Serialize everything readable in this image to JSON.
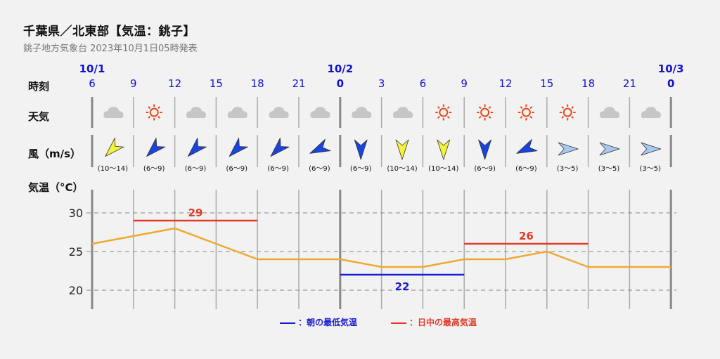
{
  "header": {
    "title": "千葉県／北東部【気温：銚子】",
    "subtitle": "銚子地方気象台 2023年10月1日05時発表"
  },
  "rows": {
    "time": "時刻",
    "weather": "天気",
    "wind": "風（m/s）",
    "temp": "気温（°C）"
  },
  "legend": {
    "min": "：朝の最低気温",
    "max": "：日中の最高気温"
  },
  "colors": {
    "temp_line": "#f0a830",
    "max_line": "#e03a2a",
    "min_line": "#1a1ad0",
    "date_blue": "#1212cc",
    "grid": "#999999"
  },
  "chart_data": {
    "type": "line",
    "dates": [
      {
        "index": 0,
        "label": "10/1"
      },
      {
        "index": 6,
        "label": "10/2"
      },
      {
        "index": 14,
        "label": "10/3"
      }
    ],
    "hours": [
      "6",
      "9",
      "12",
      "15",
      "18",
      "21",
      "0",
      "3",
      "6",
      "9",
      "12",
      "15",
      "18",
      "21",
      "0"
    ],
    "weather": [
      "cloud-icon",
      "sun-icon",
      "cloud-icon",
      "cloud-icon",
      "cloud-icon",
      "cloud-icon",
      "cloud-icon",
      "cloud-icon",
      "sun-icon",
      "sun-icon",
      "sun-icon",
      "sun-icon",
      "cloud-icon",
      "cloud-icon"
    ],
    "wind": [
      {
        "range": "(10〜14)",
        "dir": "NE",
        "color": "#f4f43a"
      },
      {
        "range": "(6〜9)",
        "dir": "NE",
        "color": "#1a44dd"
      },
      {
        "range": "(6〜9)",
        "dir": "NE",
        "color": "#1a44dd"
      },
      {
        "range": "(6〜9)",
        "dir": "NE",
        "color": "#1a44dd"
      },
      {
        "range": "(6〜9)",
        "dir": "NE",
        "color": "#1a44dd"
      },
      {
        "range": "(6〜9)",
        "dir": "ENE",
        "color": "#1a44dd"
      },
      {
        "range": "(6〜9)",
        "dir": "N",
        "color": "#1a44dd"
      },
      {
        "range": "(10〜14)",
        "dir": "N",
        "color": "#f4f43a"
      },
      {
        "range": "(10〜14)",
        "dir": "N",
        "color": "#f4f43a"
      },
      {
        "range": "(6〜9)",
        "dir": "N",
        "color": "#1a44dd"
      },
      {
        "range": "(6〜9)",
        "dir": "ENE",
        "color": "#1a44dd"
      },
      {
        "range": "(3〜5)",
        "dir": "W",
        "color": "#a9c8ef"
      },
      {
        "range": "(3〜5)",
        "dir": "W",
        "color": "#a9c8ef"
      },
      {
        "range": "(3〜5)",
        "dir": "W",
        "color": "#a9c8ef"
      }
    ],
    "temperature": [
      26,
      27,
      28,
      26,
      24,
      24,
      24,
      23,
      23,
      24,
      24,
      25,
      23,
      23,
      23
    ],
    "ylim": [
      17,
      33
    ],
    "yticks": [
      20,
      25,
      30
    ],
    "max_temps": [
      {
        "value": 29,
        "from": 1,
        "to": 4
      },
      {
        "value": 26,
        "from": 9,
        "to": 12
      }
    ],
    "min_temps": [
      {
        "value": 22,
        "from": 6,
        "to": 9
      }
    ]
  }
}
